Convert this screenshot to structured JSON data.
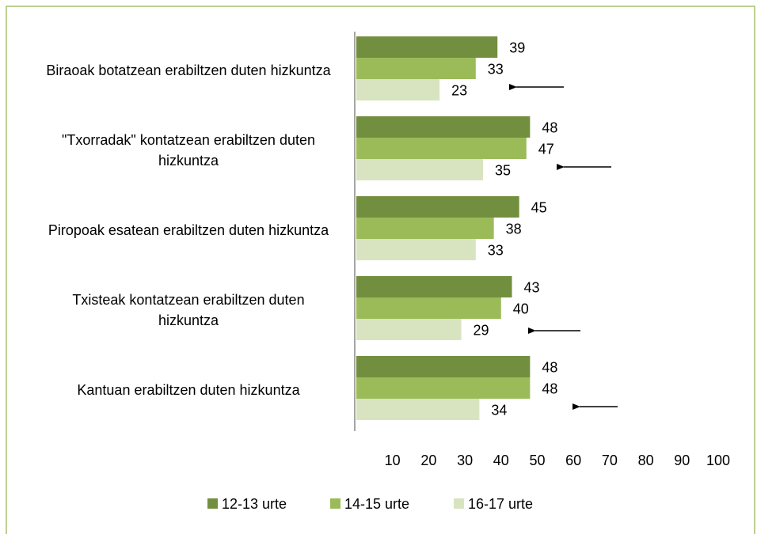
{
  "chart_data": {
    "type": "bar",
    "orientation": "horizontal",
    "categories": [
      "Biraoak botatzean erabiltzen duten hizkuntza",
      "\"Txorradak\" kontatzean erabiltzen duten hizkuntza",
      "Piropoak esatean erabiltzen duten hizkuntza",
      "Txisteak kontatzean erabiltzen duten hizkuntza",
      "Kantuan erabiltzen duten hizkuntza"
    ],
    "series": [
      {
        "name": "12-13 urte",
        "color": "#728f3f",
        "values": [
          39,
          48,
          45,
          43,
          48
        ]
      },
      {
        "name": "14-15 urte",
        "color": "#9bbb59",
        "values": [
          33,
          47,
          38,
          40,
          48
        ]
      },
      {
        "name": "16-17 urte",
        "color": "#d8e4bf",
        "values": [
          23,
          35,
          33,
          29,
          34
        ]
      }
    ],
    "xlim": [
      0,
      100
    ],
    "xticks": [
      10,
      20,
      30,
      40,
      50,
      60,
      70,
      80,
      90,
      100
    ],
    "grid": false,
    "legend": "bottom"
  }
}
